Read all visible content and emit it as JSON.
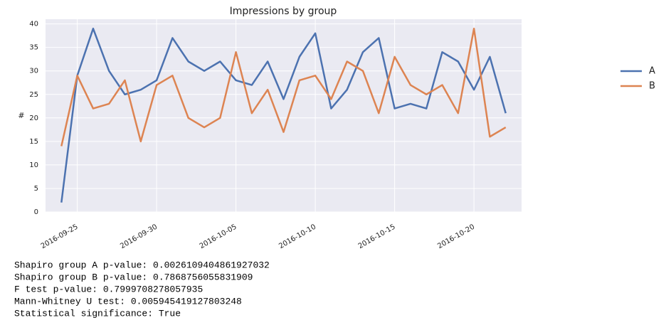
{
  "chart_data": {
    "type": "line",
    "title": "Impressions by group",
    "ylabel": "#",
    "x": [
      "2016-09-24",
      "2016-09-25",
      "2016-09-26",
      "2016-09-27",
      "2016-09-28",
      "2016-09-29",
      "2016-09-30",
      "2016-10-01",
      "2016-10-02",
      "2016-10-03",
      "2016-10-04",
      "2016-10-05",
      "2016-10-06",
      "2016-10-07",
      "2016-10-08",
      "2016-10-09",
      "2016-10-10",
      "2016-10-11",
      "2016-10-12",
      "2016-10-13",
      "2016-10-14",
      "2016-10-15",
      "2016-10-16",
      "2016-10-17",
      "2016-10-18",
      "2016-10-19",
      "2016-10-20",
      "2016-10-21",
      "2016-10-22"
    ],
    "series": [
      {
        "name": "A",
        "color": "#4c72b0",
        "values": [
          2,
          29,
          39,
          30,
          25,
          26,
          28,
          37,
          32,
          30,
          32,
          28,
          27,
          32,
          24,
          33,
          38,
          22,
          26,
          34,
          37,
          22,
          23,
          22,
          34,
          32,
          26,
          33,
          21
        ]
      },
      {
        "name": "B",
        "color": "#dd8452",
        "values": [
          14,
          29,
          22,
          23,
          28,
          15,
          27,
          29,
          20,
          18,
          20,
          34,
          21,
          26,
          17,
          28,
          29,
          24,
          32,
          30,
          21,
          33,
          27,
          25,
          27,
          21,
          39,
          16,
          18
        ]
      }
    ],
    "xlim": [
      "2016-09-23",
      "2016-10-23"
    ],
    "xticks": [
      "2016-09-25",
      "2016-09-30",
      "2016-10-05",
      "2016-10-10",
      "2016-10-15",
      "2016-10-20"
    ],
    "ylim": [
      0,
      41
    ],
    "yticks": [
      0,
      5,
      10,
      15,
      20,
      25,
      30,
      35,
      40
    ],
    "grid": true,
    "legend": "outside right"
  },
  "output_text": [
    "Shapiro group A p-value:  0.0026109404861927032",
    "Shapiro group B p-value:  0.7868756055831909",
    "F test p-value:  0.7999708278057935",
    "Mann-Whitney U test:  0.005945419127803248",
    "Statistical significance:  True"
  ]
}
